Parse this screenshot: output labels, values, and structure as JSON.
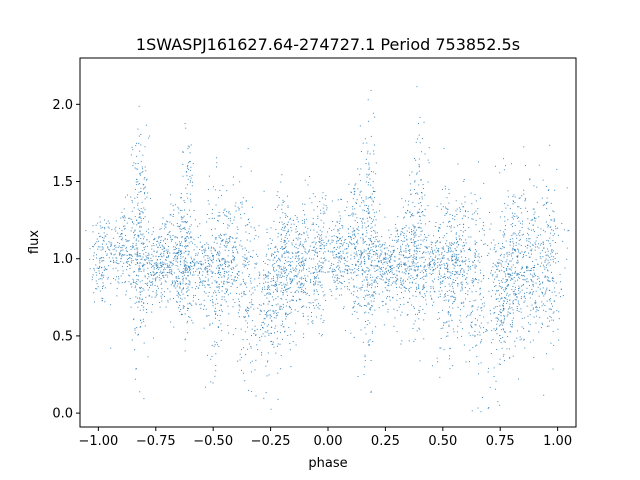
{
  "chart_data": {
    "type": "scatter",
    "title": "1SWASPJ161627.64-274727.1 Period 753852.5s",
    "xlabel": "phase",
    "ylabel": "flux",
    "xlim": [
      -1.08,
      1.08
    ],
    "ylim": [
      -0.09,
      2.3
    ],
    "xticks": [
      -1.0,
      -0.75,
      -0.5,
      -0.25,
      0.0,
      0.25,
      0.5,
      0.75,
      1.0
    ],
    "xtick_labels": [
      "−1.00",
      "−0.75",
      "−0.50",
      "−0.25",
      "0.00",
      "0.25",
      "0.50",
      "0.75",
      "1.00"
    ],
    "yticks": [
      0.0,
      0.5,
      1.0,
      1.5,
      2.0
    ],
    "ytick_labels": [
      "0.0",
      "0.5",
      "1.0",
      "1.5",
      "2.0"
    ],
    "grid": false,
    "legend": "none",
    "marker_color": "#1f77b4",
    "series": [
      {
        "clusters": [
          {
            "x": -0.99,
            "y": 1.0,
            "spread_x": 0.025,
            "spread_y": 0.16,
            "n": 120
          },
          {
            "x": -0.9,
            "y": 1.05,
            "spread_x": 0.03,
            "spread_y": 0.15,
            "n": 160
          },
          {
            "x": -0.82,
            "y": 1.1,
            "spread_x": 0.02,
            "spread_y": 0.35,
            "n": 260
          },
          {
            "x": -0.74,
            "y": 0.95,
            "spread_x": 0.04,
            "spread_y": 0.12,
            "n": 260
          },
          {
            "x": -0.65,
            "y": 1.0,
            "spread_x": 0.03,
            "spread_y": 0.2,
            "n": 220
          },
          {
            "x": -0.61,
            "y": 1.15,
            "spread_x": 0.02,
            "spread_y": 0.35,
            "n": 140
          },
          {
            "x": -0.55,
            "y": 0.95,
            "spread_x": 0.03,
            "spread_y": 0.12,
            "n": 140
          },
          {
            "x": -0.49,
            "y": 0.9,
            "spread_x": 0.025,
            "spread_y": 0.3,
            "n": 160
          },
          {
            "x": -0.43,
            "y": 1.0,
            "spread_x": 0.03,
            "spread_y": 0.2,
            "n": 200
          },
          {
            "x": -0.35,
            "y": 0.85,
            "spread_x": 0.025,
            "spread_y": 0.3,
            "n": 160
          },
          {
            "x": -0.25,
            "y": 0.75,
            "spread_x": 0.025,
            "spread_y": 0.25,
            "n": 200
          },
          {
            "x": -0.19,
            "y": 0.95,
            "spread_x": 0.025,
            "spread_y": 0.25,
            "n": 220
          },
          {
            "x": -0.12,
            "y": 0.95,
            "spread_x": 0.03,
            "spread_y": 0.2,
            "n": 200
          },
          {
            "x": -0.04,
            "y": 1.0,
            "spread_x": 0.03,
            "spread_y": 0.2,
            "n": 200
          },
          {
            "x": 0.05,
            "y": 1.0,
            "spread_x": 0.03,
            "spread_y": 0.15,
            "n": 160
          },
          {
            "x": 0.12,
            "y": 1.05,
            "spread_x": 0.025,
            "spread_y": 0.2,
            "n": 180
          },
          {
            "x": 0.18,
            "y": 1.05,
            "spread_x": 0.02,
            "spread_y": 0.35,
            "n": 260
          },
          {
            "x": 0.26,
            "y": 0.95,
            "spread_x": 0.04,
            "spread_y": 0.12,
            "n": 260
          },
          {
            "x": 0.36,
            "y": 1.0,
            "spread_x": 0.03,
            "spread_y": 0.2,
            "n": 220
          },
          {
            "x": 0.4,
            "y": 1.15,
            "spread_x": 0.02,
            "spread_y": 0.35,
            "n": 140
          },
          {
            "x": 0.46,
            "y": 0.95,
            "spread_x": 0.03,
            "spread_y": 0.12,
            "n": 140
          },
          {
            "x": 0.52,
            "y": 0.9,
            "spread_x": 0.025,
            "spread_y": 0.3,
            "n": 160
          },
          {
            "x": 0.57,
            "y": 1.0,
            "spread_x": 0.03,
            "spread_y": 0.2,
            "n": 200
          },
          {
            "x": 0.65,
            "y": 0.85,
            "spread_x": 0.025,
            "spread_y": 0.3,
            "n": 160
          },
          {
            "x": 0.75,
            "y": 0.75,
            "spread_x": 0.025,
            "spread_y": 0.25,
            "n": 200
          },
          {
            "x": 0.81,
            "y": 0.95,
            "spread_x": 0.025,
            "spread_y": 0.3,
            "n": 220
          },
          {
            "x": 0.88,
            "y": 0.95,
            "spread_x": 0.03,
            "spread_y": 0.25,
            "n": 200
          },
          {
            "x": 0.96,
            "y": 1.0,
            "spread_x": 0.03,
            "spread_y": 0.25,
            "n": 200
          }
        ]
      }
    ]
  }
}
